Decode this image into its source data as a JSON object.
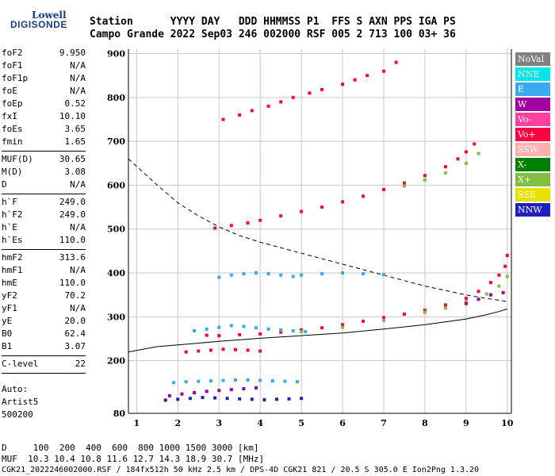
{
  "logo": {
    "line1": "Lowell",
    "line2": "DIGISONDE"
  },
  "header": {
    "labels": "Station      YYYY DAY   DDD HHMMSS P1  FFS S AXN PPS IGA PS",
    "values": "Campo Grande 2022 Sep03 246 002000 RSF 005 2 713 100 03+ 36"
  },
  "params": [
    {
      "k": "foF2",
      "v": "9.950"
    },
    {
      "k": "foF1",
      "v": "N/A"
    },
    {
      "k": "foF1p",
      "v": "N/A"
    },
    {
      "k": "foE",
      "v": "N/A"
    },
    {
      "k": "foEp",
      "v": "0.52"
    },
    {
      "k": "fxI",
      "v": "10.10"
    },
    {
      "k": "foEs",
      "v": "3.65"
    },
    {
      "k": "fmin",
      "v": "1.65"
    },
    {
      "k": "MUF(D)",
      "v": "30.65"
    },
    {
      "k": "M(D)",
      "v": "3.08"
    },
    {
      "k": "D",
      "v": "N/A"
    },
    {
      "k": "h`F",
      "v": "249.0"
    },
    {
      "k": "h`F2",
      "v": "249.0"
    },
    {
      "k": "h`E",
      "v": "N/A"
    },
    {
      "k": "h`Es",
      "v": "110.0"
    },
    {
      "k": "hmF2",
      "v": "313.6"
    },
    {
      "k": "hmF1",
      "v": "N/A"
    },
    {
      "k": "hmE",
      "v": "110.0"
    },
    {
      "k": "yF2",
      "v": "70.2"
    },
    {
      "k": "yF1",
      "v": "N/A"
    },
    {
      "k": "yE",
      "v": "20.0"
    },
    {
      "k": "B0",
      "v": "62.4"
    },
    {
      "k": "B1",
      "v": "3.07"
    },
    {
      "k": "C-level",
      "v": "22"
    }
  ],
  "auto": {
    "line1": "Auto:",
    "line2": "Artist5",
    "line3": "500200"
  },
  "legend": [
    {
      "label": "NoVal",
      "color": "#808080"
    },
    {
      "label": "NNE",
      "color": "#00e5e5"
    },
    {
      "label": "E",
      "color": "#3aaaf0"
    },
    {
      "label": "W",
      "color": "#a000a0"
    },
    {
      "label": "Vo-",
      "color": "#ff40a0"
    },
    {
      "label": "Vo+",
      "color": "#ff0040"
    },
    {
      "label": "SSW",
      "color": "#ffb0b0"
    },
    {
      "label": "X-",
      "color": "#008000"
    },
    {
      "label": "X+",
      "color": "#80c040"
    },
    {
      "label": "SSE",
      "color": "#e8e000"
    },
    {
      "label": "NNW",
      "color": "#2020c0"
    }
  ],
  "footer": {
    "d_row": "D     100  200  400  600  800 1000 1500 3000 [km]",
    "muf_row": "MUF  10.3 10.4 10.8 11.6 12.7 14.3 18.9 30.7 [MHz]",
    "info": "CGK21_2022246002000.RSF / 184fx512h 50 kHz 2.5 km / DPS-4D CGK21 821 / 20.5 S 305.0 E Ion2Png 1.3.20"
  },
  "chart_data": {
    "type": "scatter",
    "x_ticks": [
      "1",
      "2",
      "3",
      "4",
      "5",
      "6",
      "7",
      "8",
      "9",
      "10"
    ],
    "y_ticks": [
      "80",
      "200",
      "300",
      "400",
      "500",
      "600",
      "700",
      "800",
      "900"
    ],
    "xlim": [
      0.8,
      10.1
    ],
    "ylim": [
      80,
      910
    ],
    "grid": true,
    "series": [
      {
        "color": "#ff0040",
        "x": [
          2.7,
          3.0,
          3.5,
          4.0,
          4.5,
          5.0,
          5.5,
          6.0,
          6.5,
          7.0,
          7.5,
          8.0,
          8.5,
          9.0,
          9.3,
          9.6,
          9.8,
          9.95,
          10.0
        ],
        "y": [
          258,
          257,
          259,
          261,
          265,
          270,
          275,
          282,
          290,
          298,
          306,
          315,
          327,
          342,
          358,
          378,
          395,
          415,
          440
        ]
      },
      {
        "color": "#80c040",
        "x": [
          5.0,
          6.0,
          7.0,
          8.0,
          8.5,
          9.0,
          9.5,
          9.8,
          10.0
        ],
        "y": [
          266,
          276,
          292,
          310,
          320,
          334,
          352,
          370,
          392
        ]
      },
      {
        "color": "#ff0040",
        "x": [
          2.9,
          3.3,
          3.7,
          4.0,
          4.5,
          5.0,
          5.5,
          6.0,
          6.5,
          7.0,
          7.5,
          8.0,
          8.5,
          8.8,
          9.0,
          9.2
        ],
        "y": [
          502,
          508,
          514,
          520,
          530,
          540,
          550,
          562,
          575,
          590,
          605,
          622,
          642,
          660,
          676,
          694
        ]
      },
      {
        "color": "#80c040",
        "x": [
          7.5,
          8.0,
          8.5,
          9.0,
          9.3
        ],
        "y": [
          598,
          612,
          628,
          650,
          672
        ]
      },
      {
        "color": "#ff0040",
        "x": [
          3.1,
          3.5,
          3.8,
          4.2,
          4.5,
          4.8,
          5.2,
          5.5,
          6.0,
          6.3,
          6.6,
          7.0,
          7.3
        ],
        "y": [
          750,
          760,
          770,
          780,
          790,
          800,
          810,
          818,
          830,
          840,
          850,
          860,
          880
        ]
      },
      {
        "color": "#3aaaf0",
        "x": [
          3.0,
          3.3,
          3.6,
          3.9,
          4.2,
          4.5,
          4.8,
          5.0,
          5.5,
          6.0,
          6.5,
          7.0
        ],
        "y": [
          390,
          395,
          398,
          400,
          398,
          395,
          392,
          395,
          398,
          400,
          398,
          396
        ]
      },
      {
        "color": "#3aaaf0",
        "x": [
          2.4,
          2.7,
          3.0,
          3.3,
          3.6,
          3.9,
          4.2,
          4.5,
          4.8,
          5.1
        ],
        "y": [
          268,
          272,
          276,
          280,
          278,
          275,
          272,
          270,
          268,
          266
        ]
      },
      {
        "color": "#ff0040",
        "x": [
          2.2,
          2.5,
          2.8,
          3.1,
          3.4,
          3.7,
          4.0
        ],
        "y": [
          220,
          222,
          224,
          226,
          225,
          224,
          222
        ]
      },
      {
        "color": "#3aaaf0",
        "x": [
          1.9,
          2.2,
          2.5,
          2.8,
          3.1,
          3.4,
          3.7,
          4.0,
          4.3,
          4.6,
          4.9
        ],
        "y": [
          150,
          152,
          153,
          154,
          155,
          156,
          156,
          155,
          154,
          153,
          152
        ]
      },
      {
        "color": "#2020c0",
        "x": [
          1.7,
          2.0,
          2.3,
          2.6,
          2.9,
          3.2,
          3.5,
          3.8,
          4.1,
          4.4,
          4.7,
          5.0
        ],
        "y": [
          110,
          112,
          114,
          116,
          115,
          114,
          113,
          112,
          111,
          112,
          113,
          114
        ]
      },
      {
        "color": "#a000a0",
        "x": [
          1.8,
          2.1,
          2.4,
          2.7,
          3.0,
          3.3,
          3.6,
          3.9
        ],
        "y": [
          120,
          124,
          127,
          130,
          132,
          134,
          136,
          138
        ]
      },
      {
        "color": "#a000a0",
        "x": [
          9.0,
          9.3,
          9.6,
          9.9
        ],
        "y": [
          330,
          340,
          350,
          355
        ]
      }
    ],
    "curves": [
      {
        "style": "dashed",
        "x": [
          0.8,
          1.5,
          2.0,
          2.5,
          3.0,
          3.5,
          4.0,
          5.0,
          6.0,
          7.0,
          8.0,
          9.0,
          9.5,
          10.0
        ],
        "y": [
          660,
          600,
          560,
          530,
          505,
          485,
          470,
          445,
          420,
          395,
          370,
          350,
          342,
          335
        ]
      },
      {
        "style": "solid",
        "x": [
          0.8,
          1.5,
          2.0,
          3.0,
          4.0,
          5.0,
          6.0,
          7.0,
          8.0,
          9.0,
          9.5,
          9.8,
          10.0
        ],
        "y": [
          220,
          232,
          236,
          244,
          251,
          257,
          263,
          272,
          282,
          295,
          305,
          312,
          318
        ]
      }
    ]
  }
}
